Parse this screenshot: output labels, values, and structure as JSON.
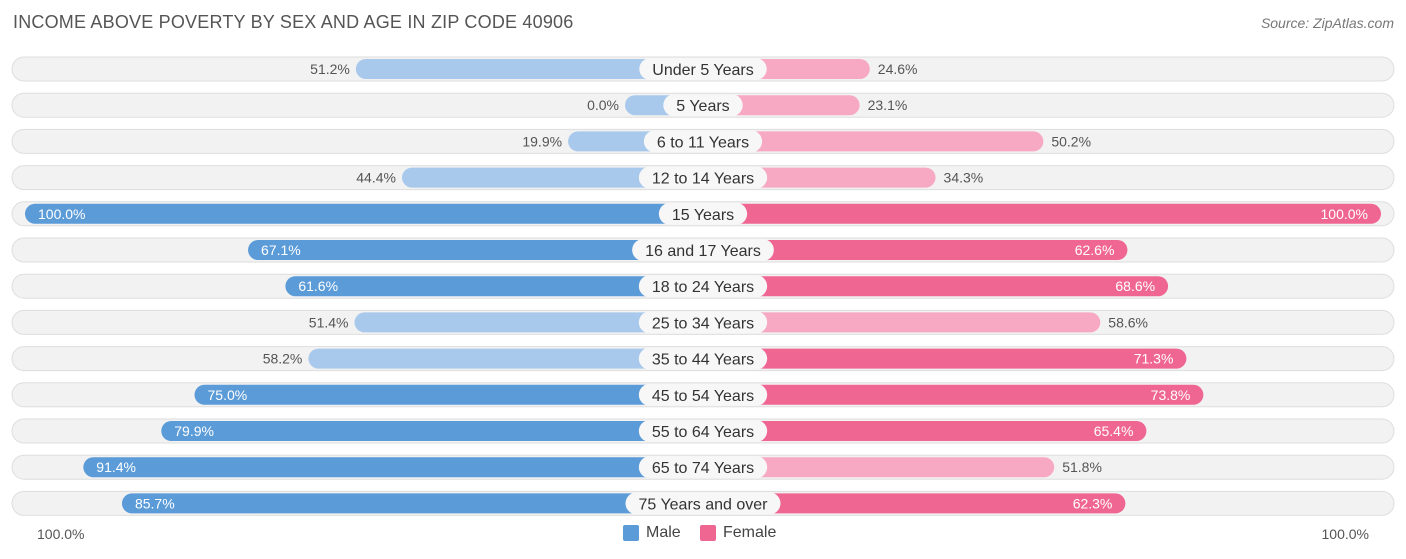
{
  "title": "INCOME ABOVE POVERTY BY SEX AND AGE IN ZIP CODE 40906",
  "source": "Source: ZipAtlas.com",
  "colors": {
    "male_strong": "#5b9bd8",
    "male_light": "#a9c9ec",
    "female_strong": "#f06693",
    "female_light": "#f7a9c3",
    "row_bg": "#f2f2f2",
    "row_border": "#dedede"
  },
  "legend": {
    "male": "Male",
    "female": "Female"
  },
  "axis": {
    "left_label": "100.0%",
    "right_label": "100.0%"
  },
  "chart_data": {
    "type": "bar",
    "orientation": "diverging-horizontal",
    "title": "INCOME ABOVE POVERTY BY SEX AND AGE IN ZIP CODE 40906",
    "xlim": [
      -100,
      100
    ],
    "categories": [
      "Under 5 Years",
      "5 Years",
      "6 to 11 Years",
      "12 to 14 Years",
      "15 Years",
      "16 and 17 Years",
      "18 to 24 Years",
      "25 to 34 Years",
      "35 to 44 Years",
      "45 to 54 Years",
      "55 to 64 Years",
      "65 to 74 Years",
      "75 Years and over"
    ],
    "series": [
      {
        "name": "Male",
        "values": [
          51.2,
          0.0,
          19.9,
          44.4,
          100.0,
          67.1,
          61.6,
          51.4,
          58.2,
          75.0,
          79.9,
          91.4,
          85.7
        ],
        "labels": [
          "51.2%",
          "0.0%",
          "19.9%",
          "44.4%",
          "100.0%",
          "67.1%",
          "61.6%",
          "51.4%",
          "58.2%",
          "75.0%",
          "79.9%",
          "91.4%",
          "85.7%"
        ]
      },
      {
        "name": "Female",
        "values": [
          24.6,
          23.1,
          50.2,
          34.3,
          100.0,
          62.6,
          68.6,
          58.6,
          71.3,
          73.8,
          65.4,
          51.8,
          62.3
        ],
        "labels": [
          "24.6%",
          "23.1%",
          "50.2%",
          "34.3%",
          "100.0%",
          "62.6%",
          "68.6%",
          "58.6%",
          "71.3%",
          "73.8%",
          "65.4%",
          "51.8%",
          "62.3%"
        ]
      }
    ],
    "legend_position": "bottom-center"
  }
}
